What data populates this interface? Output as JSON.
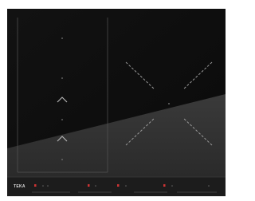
{
  "brand": "TEKA"
}
